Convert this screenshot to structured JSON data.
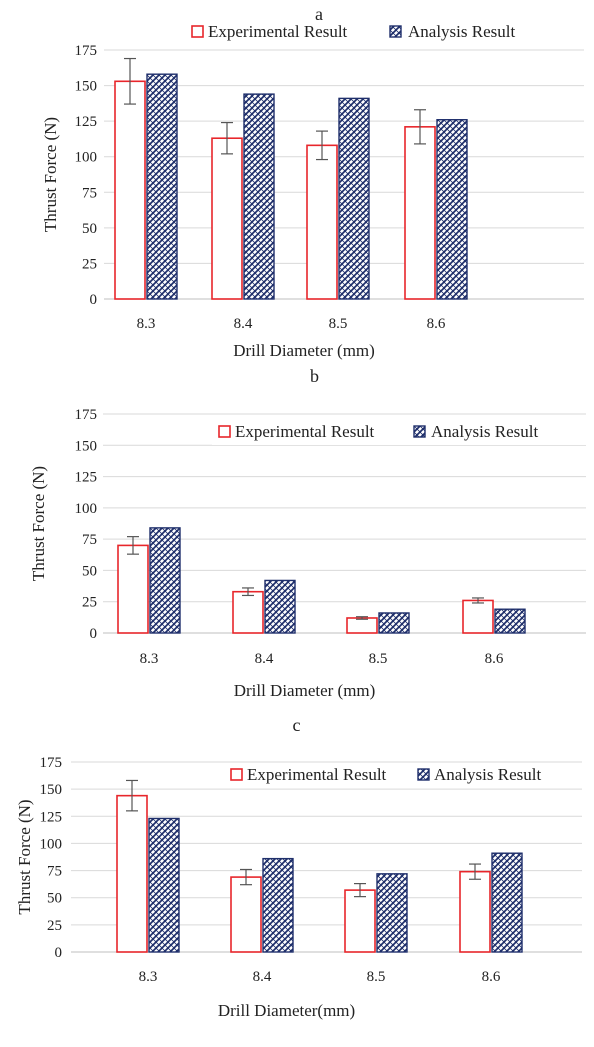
{
  "colors": {
    "experimental": "#e8262b",
    "analysis": "#1f2f6b",
    "grid": "#d9d9d9",
    "axis": "#bfbfbf",
    "errorbar": "#555555"
  },
  "chart_data": [
    {
      "type": "bar",
      "panel_label": "a",
      "categories": [
        "8.3",
        "8.4",
        "8.5",
        "8.6"
      ],
      "series": [
        {
          "name": "Experimental Result",
          "values": [
            153,
            113,
            108,
            121
          ],
          "errors": [
            16,
            11,
            10,
            12
          ],
          "style": "open-red-outline"
        },
        {
          "name": "Analysis Result",
          "values": [
            158,
            144,
            141,
            126
          ],
          "style": "navy-hatched"
        }
      ],
      "xlabel": "Drill Diameter (mm)",
      "ylabel": "Thrust Force (N)",
      "ylim": [
        0,
        175
      ],
      "yticks": [
        "0",
        "25",
        "50",
        "75",
        "100",
        "125",
        "150",
        "175"
      ],
      "grid": true,
      "legend": "top"
    },
    {
      "type": "bar",
      "panel_label": "b",
      "categories": [
        "8.3",
        "8.4",
        "8.5",
        "8.6"
      ],
      "series": [
        {
          "name": "Experimental Result",
          "values": [
            70,
            33,
            12,
            26
          ],
          "errors": [
            7,
            3,
            1,
            2
          ],
          "style": "open-red-outline"
        },
        {
          "name": "Analysis Result",
          "values": [
            84,
            42,
            16,
            19
          ],
          "style": "navy-hatched"
        }
      ],
      "xlabel": "Drill Diameter (mm)",
      "ylabel": "Thrust Force (N)",
      "ylim": [
        0,
        175
      ],
      "yticks": [
        "0",
        "25",
        "50",
        "75",
        "100",
        "125",
        "150",
        "175"
      ],
      "grid": true,
      "legend": "top-right"
    },
    {
      "type": "bar",
      "panel_label": "c",
      "categories": [
        "8.3",
        "8.4",
        "8.5",
        "8.6"
      ],
      "series": [
        {
          "name": "Experimental Result",
          "values": [
            144,
            69,
            57,
            74
          ],
          "errors": [
            14,
            7,
            6,
            7
          ],
          "style": "open-red-outline"
        },
        {
          "name": "Analysis Result",
          "values": [
            123,
            86,
            72,
            91
          ],
          "style": "navy-hatched"
        }
      ],
      "xlabel": "Drill Diameter(mm)",
      "ylabel": "Thrust Force (N)",
      "ylim": [
        0,
        175
      ],
      "yticks": [
        "0",
        "25",
        "50",
        "75",
        "100",
        "125",
        "150",
        "175"
      ],
      "grid": true,
      "legend": "top-right"
    }
  ]
}
